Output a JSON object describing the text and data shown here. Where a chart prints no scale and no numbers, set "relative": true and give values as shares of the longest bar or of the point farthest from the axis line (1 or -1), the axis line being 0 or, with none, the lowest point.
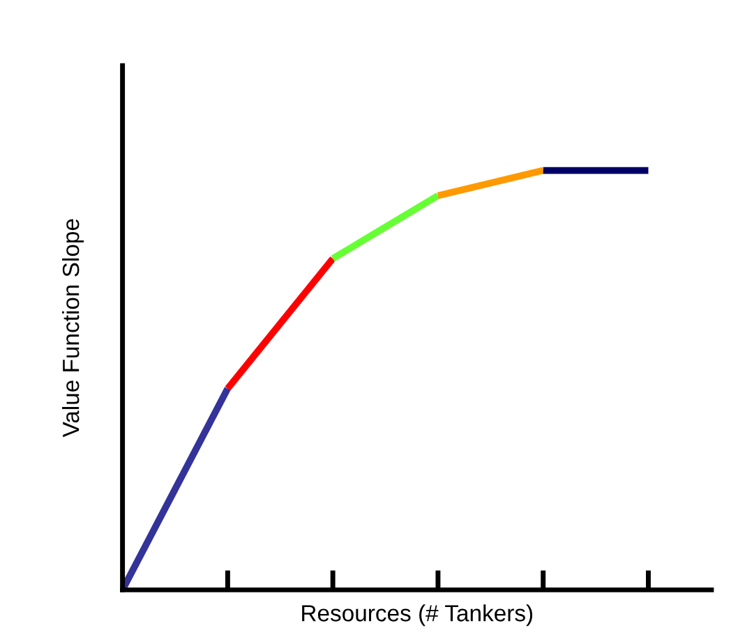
{
  "chart_data": {
    "type": "line",
    "relative": true,
    "xlabel": "Resources (# Tankers)",
    "ylabel": "Value Function Slope",
    "categories": [
      null,
      null,
      null,
      null,
      null,
      null
    ],
    "series": [
      {
        "color": "#333399",
        "values": [
          0,
          0.48,
          null,
          null,
          null,
          null
        ]
      },
      {
        "color": "#ff0000",
        "values": [
          null,
          0.48,
          0.79,
          null,
          null,
          null
        ]
      },
      {
        "color": "#66ff33",
        "values": [
          null,
          null,
          0.79,
          0.94,
          null,
          null
        ]
      },
      {
        "color": "#ff9900",
        "values": [
          null,
          null,
          null,
          0.94,
          1,
          null
        ]
      },
      {
        "color": "#000066",
        "values": [
          null,
          null,
          null,
          null,
          1,
          1
        ]
      }
    ],
    "marker": "none",
    "line_style": "solid",
    "grid": false,
    "legend": false
  }
}
